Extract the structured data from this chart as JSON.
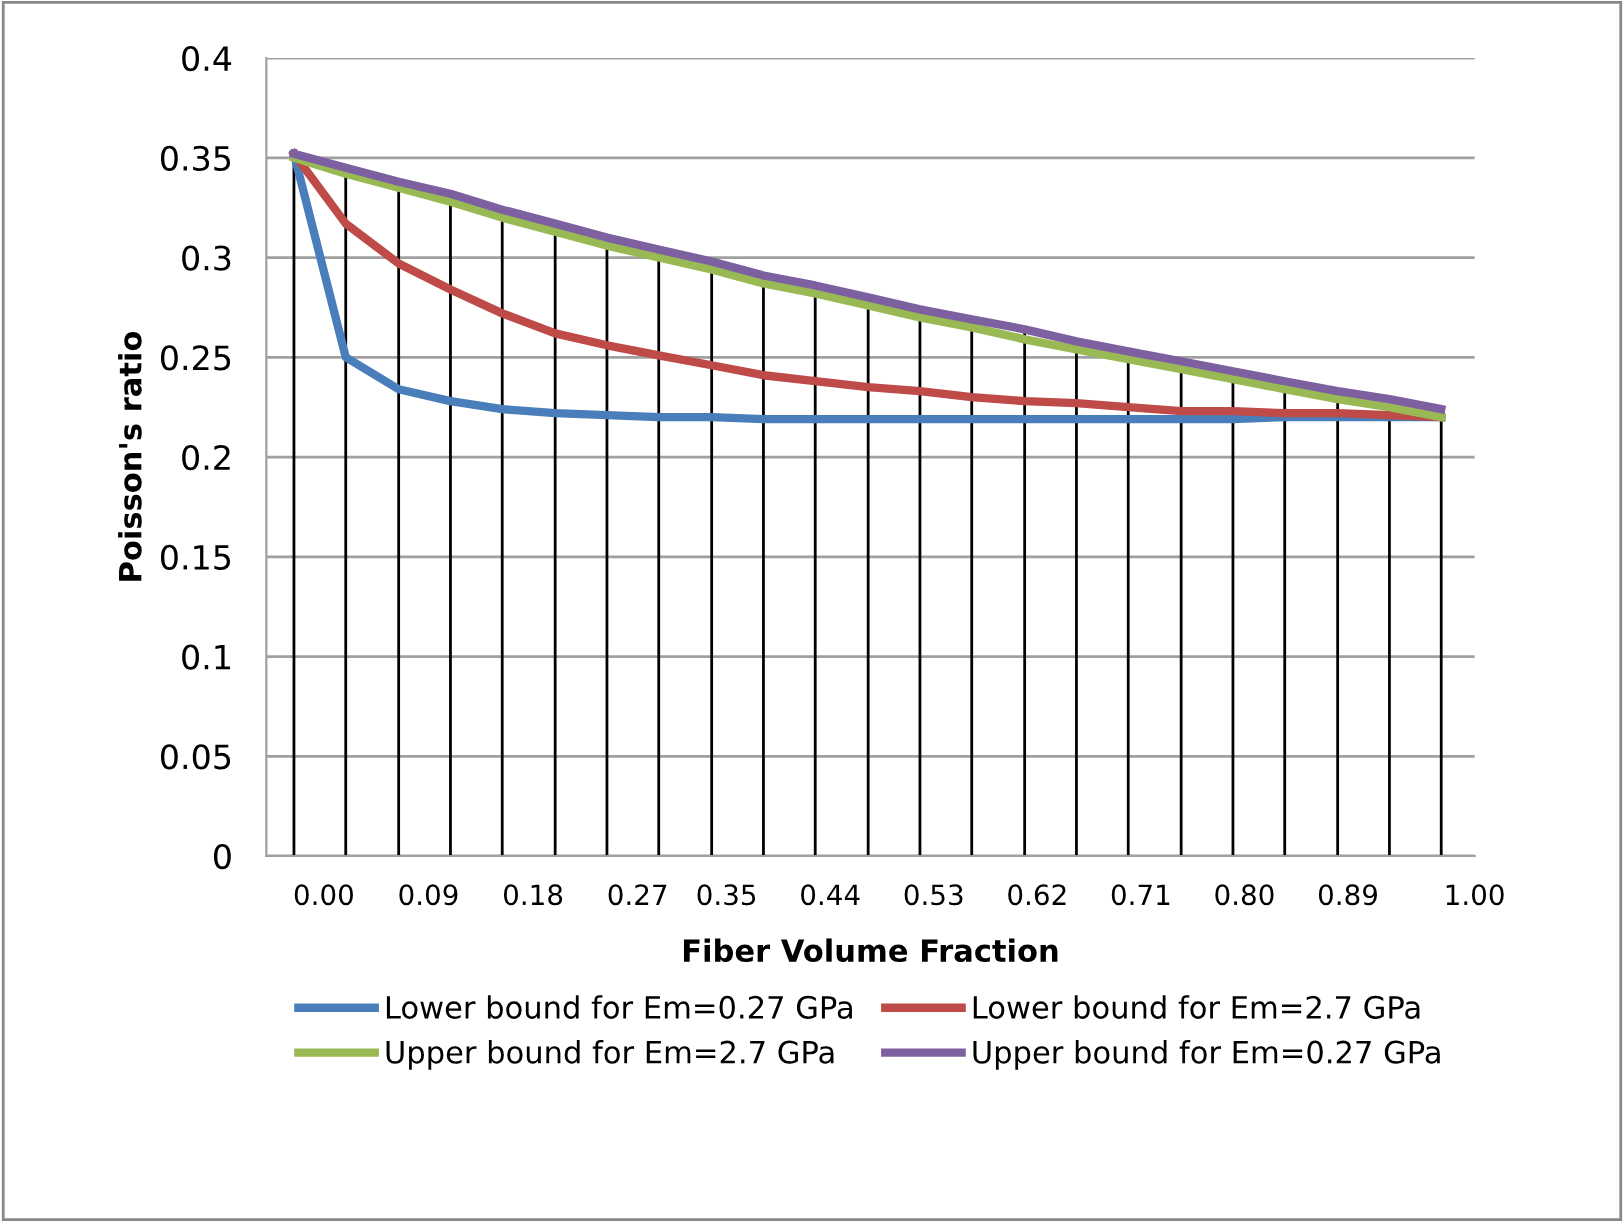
{
  "chart_data": {
    "type": "line",
    "xlabel": "Fiber Volume Fraction",
    "ylabel": "Poisson's ratio",
    "x": [
      -0.026,
      0.019,
      0.065,
      0.11,
      0.155,
      0.201,
      0.246,
      0.291,
      0.337,
      0.382,
      0.427,
      0.473,
      0.518,
      0.563,
      0.609,
      0.654,
      0.699,
      0.745,
      0.79,
      0.835,
      0.881,
      0.926,
      0.971
    ],
    "series": [
      {
        "name": "Lower bound for Em=0.27 GPa",
        "color": "#4a7ebb",
        "values": [
          0.352,
          0.25,
          0.234,
          0.228,
          0.224,
          0.222,
          0.221,
          0.22,
          0.22,
          0.219,
          0.219,
          0.219,
          0.219,
          0.219,
          0.219,
          0.219,
          0.219,
          0.219,
          0.219,
          0.22,
          0.22,
          0.22,
          0.22
        ]
      },
      {
        "name": "Lower bound for Em=2.7 GPa",
        "color": "#be4b48",
        "values": [
          0.352,
          0.317,
          0.297,
          0.284,
          0.272,
          0.262,
          0.256,
          0.251,
          0.246,
          0.241,
          0.238,
          0.235,
          0.233,
          0.23,
          0.228,
          0.227,
          0.225,
          0.223,
          0.223,
          0.222,
          0.222,
          0.221,
          0.22
        ]
      },
      {
        "name": "Upper bound for Em=2.7 GPa",
        "color": "#98b954",
        "values": [
          0.35,
          0.342,
          0.335,
          0.328,
          0.32,
          0.313,
          0.306,
          0.3,
          0.294,
          0.287,
          0.282,
          0.276,
          0.27,
          0.265,
          0.259,
          0.254,
          0.249,
          0.244,
          0.239,
          0.234,
          0.229,
          0.225,
          0.22
        ]
      },
      {
        "name": "Upper bound for Em=0.27 GPa",
        "color": "#7d60a0",
        "values": [
          0.352,
          0.345,
          0.338,
          0.332,
          0.324,
          0.317,
          0.31,
          0.304,
          0.298,
          0.291,
          0.286,
          0.28,
          0.274,
          0.269,
          0.264,
          0.258,
          0.253,
          0.248,
          0.243,
          0.238,
          0.233,
          0.229,
          0.224
        ]
      }
    ],
    "xlim": [
      -0.05,
      1.0
    ],
    "xticks": [
      {
        "value": 0,
        "label": "0.00"
      },
      {
        "value": 0.0909,
        "label": "0.09"
      },
      {
        "value": 0.1818,
        "label": "0.18"
      },
      {
        "value": 0.2727,
        "label": "0.27"
      },
      {
        "value": 0.35,
        "label": "0.35"
      },
      {
        "value": 0.44,
        "label": "0.44"
      },
      {
        "value": 0.53,
        "label": "0.53"
      },
      {
        "value": 0.62,
        "label": "0.62"
      },
      {
        "value": 0.71,
        "label": "0.71"
      },
      {
        "value": 0.8,
        "label": "0.80"
      },
      {
        "value": 0.89,
        "label": "0.89"
      },
      {
        "value": 1.0,
        "label": "1.00"
      }
    ],
    "ylim": [
      0,
      0.4
    ],
    "yticks": [
      0,
      0.05,
      0.1,
      0.15,
      0.2,
      0.25,
      0.3,
      0.35,
      0.4
    ],
    "ref_lines": [
      {
        "axis": "x",
        "value": -0.026,
        "color": "#000000"
      },
      {
        "axis": "x",
        "value": 0.019,
        "color": "#000000"
      },
      {
        "axis": "x",
        "value": 0.065,
        "color": "#000000"
      },
      {
        "axis": "x",
        "value": 0.11,
        "color": "#000000"
      },
      {
        "axis": "x",
        "value": 0.155,
        "color": "#000000"
      },
      {
        "axis": "x",
        "value": 0.201,
        "color": "#000000"
      },
      {
        "axis": "x",
        "value": 0.246,
        "color": "#000000"
      },
      {
        "axis": "x",
        "value": 0.291,
        "color": "#000000"
      },
      {
        "axis": "x",
        "value": 0.337,
        "color": "#000000"
      },
      {
        "axis": "x",
        "value": 0.382,
        "color": "#000000"
      },
      {
        "axis": "x",
        "value": 0.427,
        "color": "#000000"
      },
      {
        "axis": "x",
        "value": 0.473,
        "color": "#000000"
      },
      {
        "axis": "x",
        "value": 0.518,
        "color": "#000000"
      },
      {
        "axis": "x",
        "value": 0.563,
        "color": "#000000"
      },
      {
        "axis": "x",
        "value": 0.609,
        "color": "#000000"
      },
      {
        "axis": "x",
        "value": 0.654,
        "color": "#000000"
      },
      {
        "axis": "x",
        "value": 0.699,
        "color": "#000000"
      },
      {
        "axis": "x",
        "value": 0.745,
        "color": "#000000"
      },
      {
        "axis": "x",
        "value": 0.79,
        "color": "#000000"
      },
      {
        "axis": "x",
        "value": 0.835,
        "color": "#000000"
      },
      {
        "axis": "x",
        "value": 0.881,
        "color": "#000000"
      },
      {
        "axis": "x",
        "value": 0.926,
        "color": "#000000"
      },
      {
        "axis": "x",
        "value": 0.971,
        "color": "#000000"
      }
    ],
    "grid": "y",
    "legend": "bottom",
    "marker": "none",
    "line_style": "solid"
  }
}
